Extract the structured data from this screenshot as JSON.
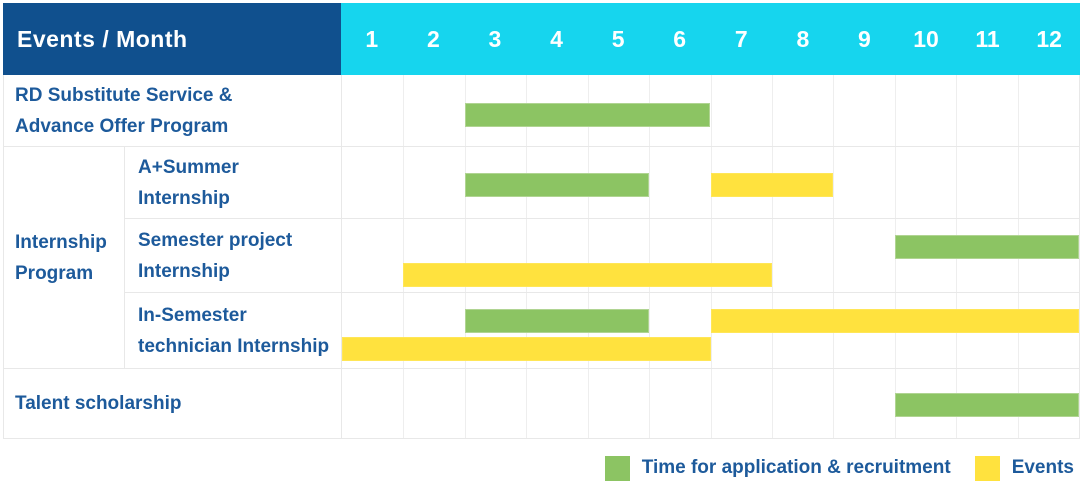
{
  "colors": {
    "header_bg": "#10508e",
    "months_bg": "#16d5ee",
    "header_text": "#ffffff",
    "label_text": "#1d5a9b",
    "green": "#8cc463",
    "yellow": "#ffe23e",
    "grid_line": "#e8e8e8"
  },
  "header": {
    "title": "Events / Month",
    "months": [
      "1",
      "2",
      "3",
      "4",
      "5",
      "6",
      "7",
      "8",
      "9",
      "10",
      "11",
      "12"
    ]
  },
  "rows": [
    {
      "id": "rd",
      "label_lines": [
        "RD Substitute Service &",
        "Advance Offer Program"
      ]
    },
    {
      "id": "internship-group",
      "label_lines": [
        "Internship",
        "Program"
      ]
    },
    {
      "id": "a-plus-summer",
      "label_lines": [
        "A+Summer",
        "Internship"
      ]
    },
    {
      "id": "semester-project",
      "label_lines": [
        "Semester project",
        "Internship"
      ]
    },
    {
      "id": "in-semester",
      "label_lines": [
        "In-Semester",
        "technician Internship"
      ]
    },
    {
      "id": "talent",
      "label_lines": [
        "Talent scholarship"
      ]
    }
  ],
  "legend": {
    "application": "Time for application & recruitment",
    "events": "Events"
  },
  "chart_data": {
    "type": "bar",
    "subtype": "gantt",
    "title": "Events / Month",
    "xlabel": "Month",
    "x_ticks": [
      1,
      2,
      3,
      4,
      5,
      6,
      7,
      8,
      9,
      10,
      11,
      12
    ],
    "x_range": [
      1,
      12
    ],
    "grid": true,
    "legend_position": "bottom-right",
    "legend_entries": [
      {
        "label": "Time for application & recruitment",
        "color": "#8cc463"
      },
      {
        "label": "Events",
        "color": "#ffe23e"
      }
    ],
    "bars": [
      {
        "row": "rd",
        "row_label": "RD Substitute Service & Advance Offer Program",
        "category": "application",
        "start_month": 3,
        "end_month": 6,
        "lane": "single"
      },
      {
        "row": "a-plus-summer",
        "row_label": "A+Summer Internship",
        "category": "application",
        "start_month": 3,
        "end_month": 5,
        "lane": "single"
      },
      {
        "row": "a-plus-summer",
        "row_label": "A+Summer Internship",
        "category": "events",
        "start_month": 7,
        "end_month": 8,
        "lane": "single"
      },
      {
        "row": "semester-project",
        "row_label": "Semester project Internship",
        "category": "application",
        "start_month": 10,
        "end_month": 12,
        "lane": "upper"
      },
      {
        "row": "semester-project",
        "row_label": "Semester project Internship",
        "category": "events",
        "start_month": 2,
        "end_month": 7,
        "lane": "lower"
      },
      {
        "row": "in-semester",
        "row_label": "In-Semester technician Internship",
        "category": "application",
        "start_month": 3,
        "end_month": 5,
        "lane": "upper"
      },
      {
        "row": "in-semester",
        "row_label": "In-Semester technician Internship",
        "category": "events",
        "start_month": 7,
        "end_month": 12,
        "lane": "upper"
      },
      {
        "row": "in-semester",
        "row_label": "In-Semester technician Internship",
        "category": "events",
        "start_month": 1,
        "end_month": 6,
        "lane": "lower"
      },
      {
        "row": "talent",
        "row_label": "Talent scholarship",
        "category": "application",
        "start_month": 10,
        "end_month": 12,
        "lane": "single"
      }
    ]
  }
}
